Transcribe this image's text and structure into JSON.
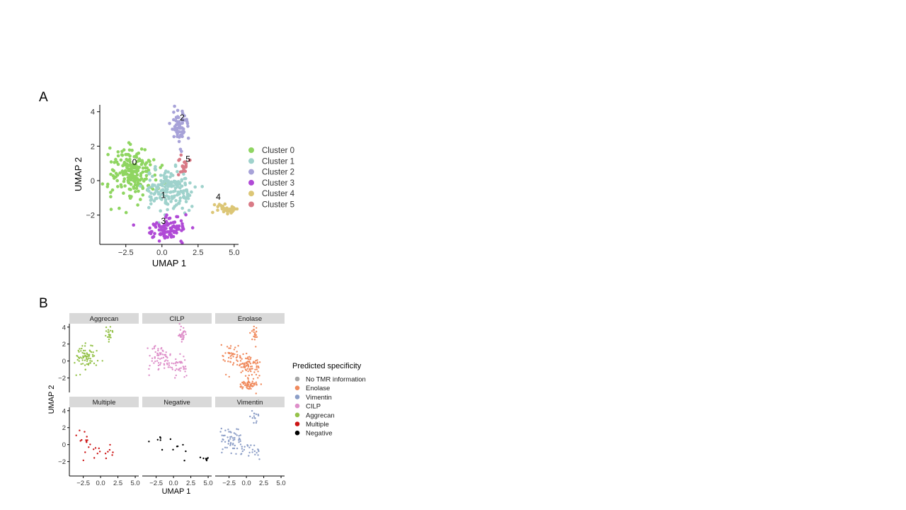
{
  "panels": {
    "a_label": "A",
    "b_label": "B"
  },
  "chart_data": [
    {
      "type": "scatter",
      "title": "",
      "xlabel": "UMAP 1",
      "ylabel": "UMAP 2",
      "xlim": [
        -4.3,
        5.3
      ],
      "ylim": [
        -3.7,
        4.4
      ],
      "xticks": [
        -2.5,
        0.0,
        2.5,
        5.0
      ],
      "xtick_labels": [
        "−2.5",
        "0.0",
        "2.5",
        "5.0"
      ],
      "yticks": [
        -2,
        0,
        2,
        4
      ],
      "ytick_labels": [
        "−2",
        "0",
        "2",
        "4"
      ],
      "grid": false,
      "legend_position": "right",
      "series": [
        {
          "name": "Cluster 0",
          "color": "#8fd561",
          "label": "0",
          "label_pos": [
            -1.9,
            0.9
          ]
        },
        {
          "name": "Cluster 1",
          "color": "#9fd2cc",
          "label": "1",
          "label_pos": [
            0.1,
            -1.0
          ]
        },
        {
          "name": "Cluster 2",
          "color": "#a7a2d8",
          "label": "2",
          "label_pos": [
            1.4,
            3.5
          ]
        },
        {
          "name": "Cluster 3",
          "color": "#b04ad6",
          "label": "3",
          "label_pos": [
            0.1,
            -2.5
          ]
        },
        {
          "name": "Cluster 4",
          "color": "#dcc676",
          "label": "4",
          "label_pos": [
            3.9,
            -1.1
          ]
        },
        {
          "name": "Cluster 5",
          "color": "#d97a86",
          "label": "5",
          "label_pos": [
            1.8,
            1.1
          ]
        }
      ]
    },
    {
      "type": "scatter",
      "title": "",
      "xlabel": "UMAP 1",
      "ylabel": "UMAP 2",
      "xlim": [
        -4.3,
        5.3
      ],
      "ylim": [
        -3.7,
        4.4
      ],
      "xticks": [
        -2.5,
        0.0,
        2.5,
        5.0
      ],
      "xtick_labels": [
        "−2.5",
        "0.0",
        "2.5",
        "5.0"
      ],
      "yticks": [
        -2,
        0,
        2,
        4
      ],
      "ytick_labels": [
        "−2",
        "0",
        "2",
        "4"
      ],
      "grid": false,
      "legend_title": "Predicted specificity",
      "legend_position": "right",
      "legend": [
        {
          "name": "No TMR information",
          "color": "#a6a6a6"
        },
        {
          "name": "Enolase",
          "color": "#f08a5d"
        },
        {
          "name": "Vimentin",
          "color": "#8c9ec7"
        },
        {
          "name": "CILP",
          "color": "#de8fc9"
        },
        {
          "name": "Aggrecan",
          "color": "#95c24a"
        },
        {
          "name": "Multiple",
          "color": "#cc1414"
        },
        {
          "name": "Negative",
          "color": "#000000"
        }
      ],
      "facets": [
        {
          "name": "Aggrecan",
          "color": "#95c24a"
        },
        {
          "name": "CILP",
          "color": "#de8fc9"
        },
        {
          "name": "Enolase",
          "color": "#f08a5d"
        },
        {
          "name": "Multiple",
          "color": "#cc1414"
        },
        {
          "name": "Negative",
          "color": "#000000"
        },
        {
          "name": "Vimentin",
          "color": "#8c9ec7"
        }
      ]
    }
  ]
}
